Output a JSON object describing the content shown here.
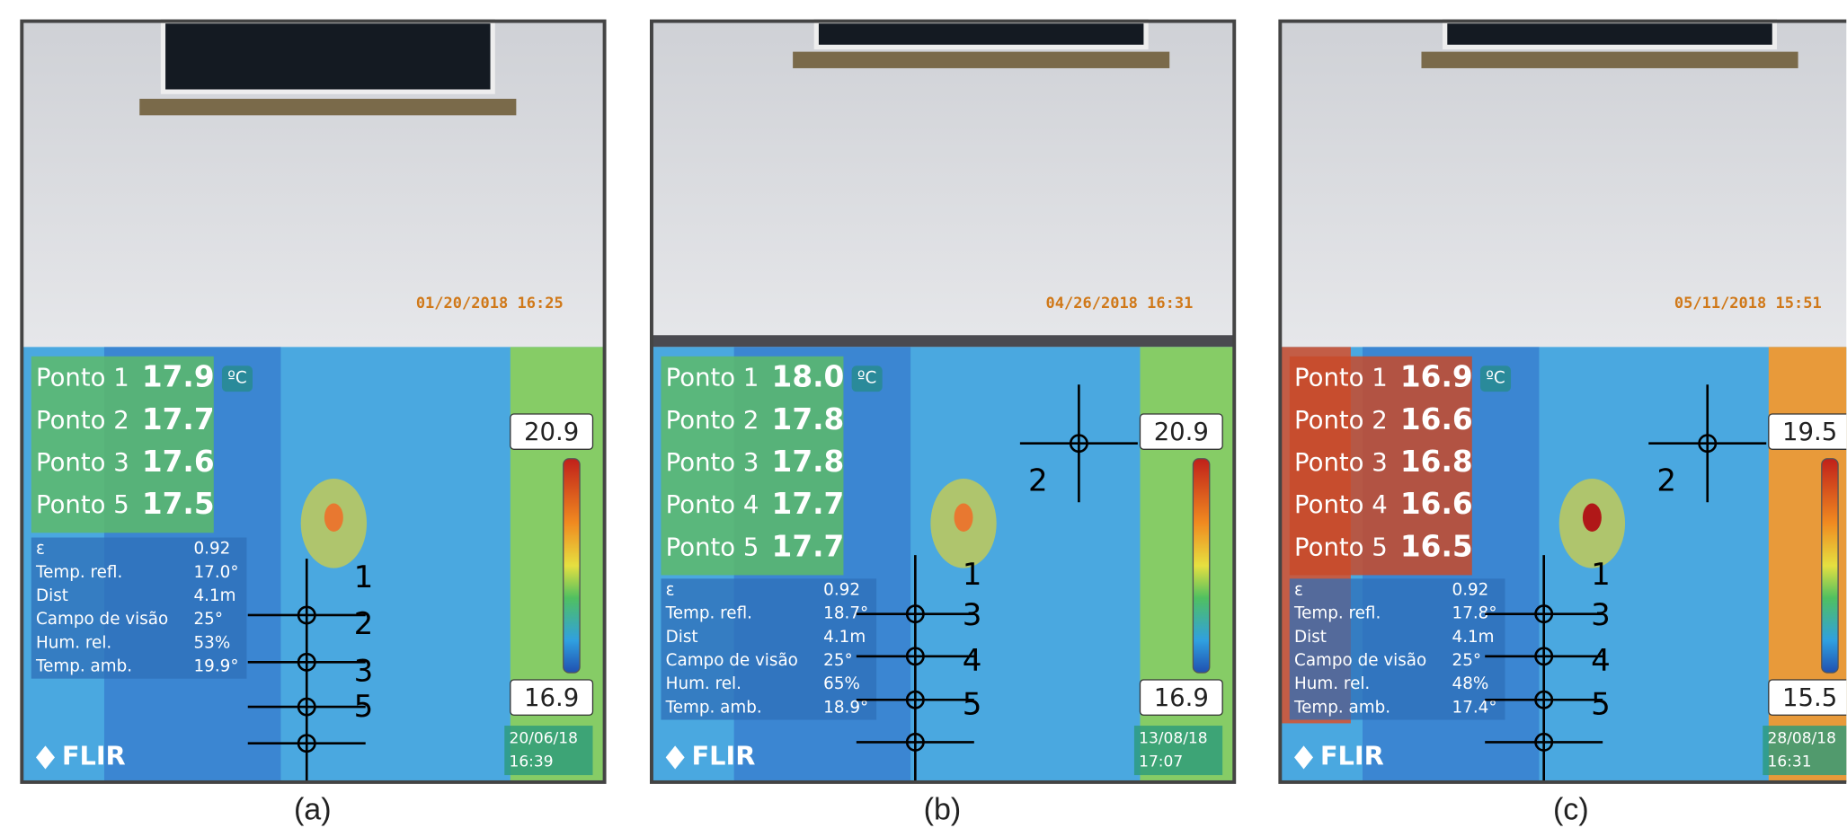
{
  "panels": [
    {
      "caption": "(a)",
      "photo_timestamp": "01/20/2018 16:25",
      "unit": "ºC",
      "points": [
        {
          "label": "Ponto 1",
          "value": "17.9"
        },
        {
          "label": "Ponto 2",
          "value": "17.7"
        },
        {
          "label": "Ponto 3",
          "value": "17.6"
        },
        {
          "label": "Ponto 5",
          "value": "17.5"
        }
      ],
      "params": [
        {
          "label": "ε",
          "value": "0.92"
        },
        {
          "label": "Temp. refl.",
          "value": "17.0°"
        },
        {
          "label": "Dist",
          "value": "4.1m"
        },
        {
          "label": "Campo de visão",
          "value": "25°"
        },
        {
          "label": "Hum. rel.",
          "value": "53%"
        },
        {
          "label": "Temp. amb.",
          "value": "19.9°"
        }
      ],
      "scale_max": "20.9",
      "scale_min": "16.9",
      "date": "20/06/18",
      "time": "16:39",
      "brand": "FLIR",
      "markers": [
        "1",
        "2",
        "3",
        "5"
      ]
    },
    {
      "caption": "(b)",
      "photo_timestamp": "04/26/2018 16:31",
      "unit": "ºC",
      "points": [
        {
          "label": "Ponto 1",
          "value": "18.0"
        },
        {
          "label": "Ponto 2",
          "value": "17.8"
        },
        {
          "label": "Ponto 3",
          "value": "17.8"
        },
        {
          "label": "Ponto 4",
          "value": "17.7"
        },
        {
          "label": "Ponto 5",
          "value": "17.7"
        }
      ],
      "params": [
        {
          "label": "ε",
          "value": "0.92"
        },
        {
          "label": "Temp. refl.",
          "value": "18.7°"
        },
        {
          "label": "Dist",
          "value": "4.1m"
        },
        {
          "label": "Campo de visão",
          "value": "25°"
        },
        {
          "label": "Hum. rel.",
          "value": "65%"
        },
        {
          "label": "Temp. amb.",
          "value": "18.9°"
        }
      ],
      "scale_max": "20.9",
      "scale_min": "16.9",
      "date": "13/08/18",
      "time": "17:07",
      "brand": "FLIR",
      "markers": [
        "1",
        "2",
        "3",
        "4",
        "5"
      ]
    },
    {
      "caption": "(c)",
      "photo_timestamp": "05/11/2018 15:51",
      "unit": "ºC",
      "points": [
        {
          "label": "Ponto 1",
          "value": "16.9"
        },
        {
          "label": "Ponto 2",
          "value": "16.6"
        },
        {
          "label": "Ponto 3",
          "value": "16.8"
        },
        {
          "label": "Ponto 4",
          "value": "16.6"
        },
        {
          "label": "Ponto 5",
          "value": "16.5"
        }
      ],
      "params": [
        {
          "label": "ε",
          "value": "0.92"
        },
        {
          "label": "Temp. refl.",
          "value": "17.8°"
        },
        {
          "label": "Dist",
          "value": "4.1m"
        },
        {
          "label": "Campo de visão",
          "value": "25°"
        },
        {
          "label": "Hum. rel.",
          "value": "48%"
        },
        {
          "label": "Temp. amb.",
          "value": "17.4°"
        }
      ],
      "scale_max": "19.5",
      "scale_min": "15.5",
      "date": "28/08/18",
      "time": "16:31",
      "brand": "FLIR",
      "markers": [
        "1",
        "2",
        "3",
        "4",
        "5"
      ]
    }
  ]
}
